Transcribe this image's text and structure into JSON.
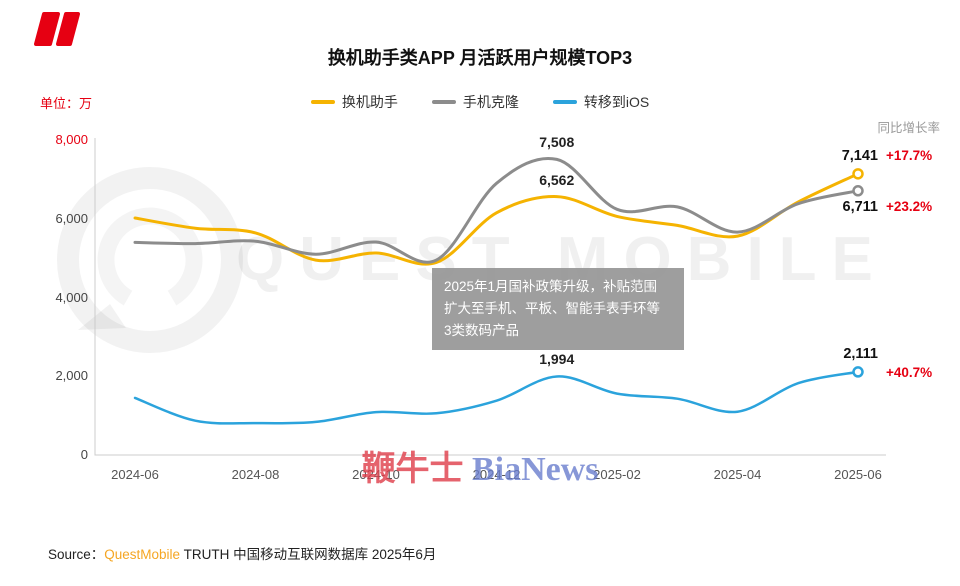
{
  "page": {
    "title": "换机助手类APP 月活跃用户规模TOP3",
    "unit_label": "单位：万",
    "right_axis_label": "同比增长率"
  },
  "legend": [
    {
      "label": "换机助手",
      "color": "#F5B301"
    },
    {
      "label": "手机克隆",
      "color": "#8C8C8C"
    },
    {
      "label": "转移到iOS",
      "color": "#2BA3DC"
    }
  ],
  "chart_data": {
    "type": "line",
    "title": "换机助手类APP 月活跃用户规模TOP3",
    "unit": "万",
    "x": [
      "2024-06",
      "2024-07",
      "2024-08",
      "2024-09",
      "2024-10",
      "2024-11",
      "2024-12",
      "2025-01",
      "2025-02",
      "2025-03",
      "2025-04",
      "2025-05",
      "2025-06"
    ],
    "x_tick_indices": [
      0,
      2,
      4,
      6,
      8,
      10,
      12
    ],
    "ylim": [
      0,
      8000
    ],
    "grid": false,
    "legend_position": "top",
    "y_ticks": [
      {
        "label": "8,000",
        "value": 8000,
        "color": "#E60012"
      },
      {
        "label": "6,000",
        "value": 6000,
        "color": "#444444"
      },
      {
        "label": "4,000",
        "value": 4000,
        "color": "#444444"
      },
      {
        "label": "2,000",
        "value": 2000,
        "color": "#444444"
      },
      {
        "label": "0",
        "value": 0,
        "color": "#444444"
      }
    ],
    "series": [
      {
        "name": "换机助手",
        "color": "#F5B301",
        "width": 3,
        "values": [
          6020,
          5760,
          5640,
          4950,
          5130,
          4890,
          6150,
          6562,
          6060,
          5830,
          5560,
          6420,
          7141
        ],
        "end": {
          "value_label": "7,141",
          "growth_label": "+17.7%",
          "value_dy": -26,
          "growth_dy": -26
        }
      },
      {
        "name": "手机克隆",
        "color": "#8C8C8C",
        "width": 3,
        "values": [
          5400,
          5370,
          5430,
          5100,
          5410,
          4950,
          6900,
          7508,
          6240,
          6300,
          5660,
          6380,
          6711
        ],
        "end": {
          "value_label": "6,711",
          "growth_label": "+23.2%",
          "value_dy": 8,
          "growth_dy": 8
        }
      },
      {
        "name": "转移到iOS",
        "color": "#2BA3DC",
        "width": 2.5,
        "values": [
          1450,
          870,
          810,
          840,
          1090,
          1060,
          1380,
          1994,
          1560,
          1430,
          1100,
          1820,
          2111
        ],
        "end": {
          "value_label": "2,111",
          "growth_label": "+40.7%",
          "value_dy": -26,
          "growth_dy": -7
        }
      }
    ],
    "point_labels": [
      {
        "text": "7,508",
        "x_index": 7,
        "value": 7508
      },
      {
        "text": "6,562",
        "x_index": 7,
        "value": 6562
      },
      {
        "text": "1,994",
        "x_index": 7,
        "value": 1994
      }
    ],
    "growth_color": "#E60012"
  },
  "annotation": {
    "lines": [
      "2025年1月国补政策升级，补贴范围",
      "扩大至手机、平板、智能手表手环等",
      "3类数码产品"
    ]
  },
  "watermarks": {
    "center_text": "QUEST MOBILE",
    "bottom_cn": "鞭牛士",
    "bottom_en": "BiaNews"
  },
  "source": {
    "prefix": "Source：",
    "brand": "QuestMobile",
    "suffix": " TRUTH 中国移动互联网数据库 2025年6月"
  }
}
